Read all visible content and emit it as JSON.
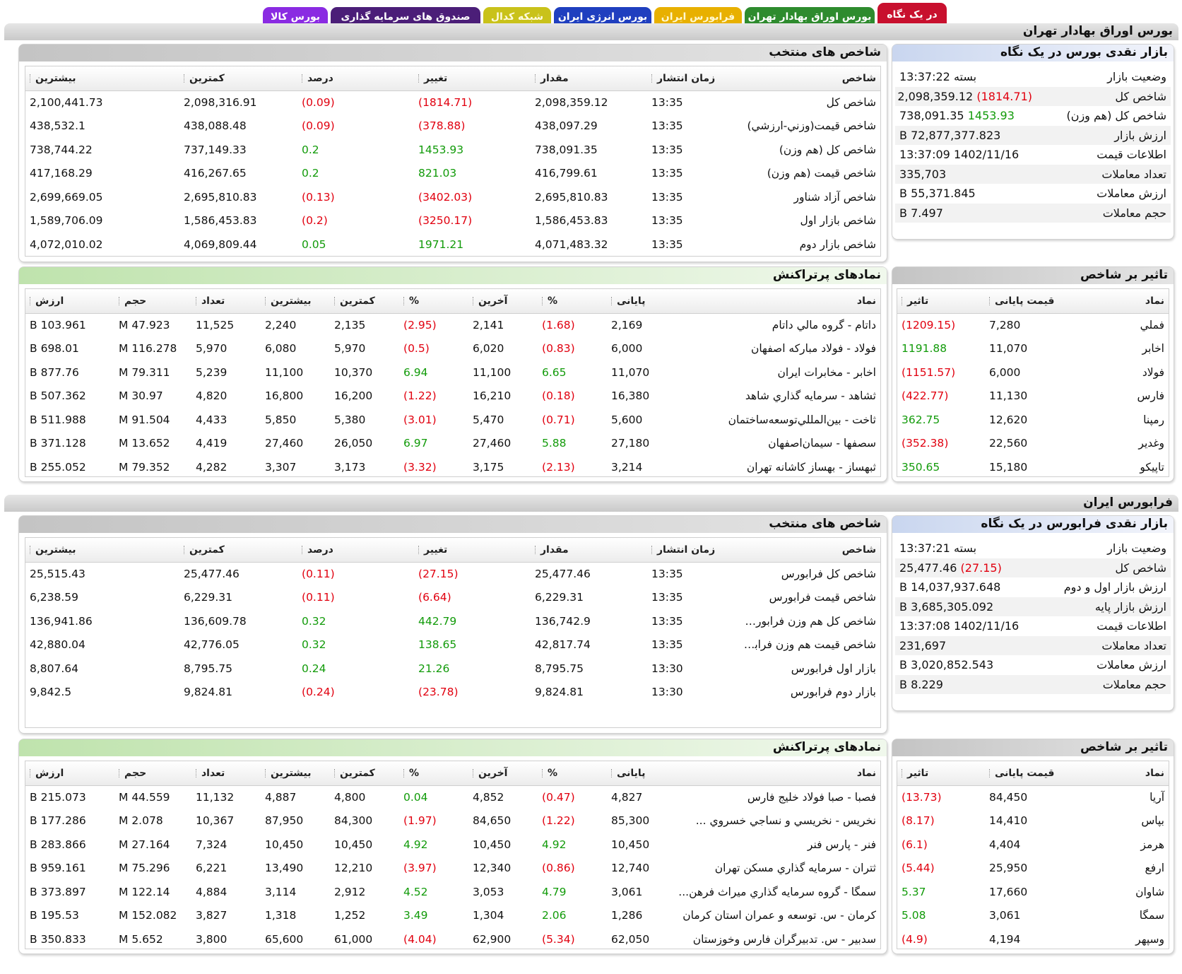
{
  "tabs": [
    {
      "label": "در یک نگاه",
      "bg": "#c8102e",
      "fg": "#ffffff",
      "active": true
    },
    {
      "label": "بورس اوراق بهادار تهران",
      "bg": "#2e8b2e",
      "fg": "#ffffff"
    },
    {
      "label": "فرابورس ایران",
      "bg": "#e8b000",
      "fg": "#fff8d0"
    },
    {
      "label": "بورس انرژی ایران",
      "bg": "#1f3fbf",
      "fg": "#ffffff"
    },
    {
      "label": "شبکه کدال",
      "bg": "#c9c21a",
      "fg": "#fffbe0"
    },
    {
      "label": "صندوق های سرمایه گذاری",
      "bg": "#4b1e78",
      "fg": "#ffffff"
    },
    {
      "label": "بورس کالا",
      "bg": "#8a2be2",
      "fg": "#ffffff"
    }
  ],
  "colors": {
    "negative": "#e1000f",
    "positive": "#129b0a"
  },
  "tehran": {
    "title": "بورس اوراق بهادار تهران",
    "overview": {
      "title": "بازار نقدی بورس در یک نگاه",
      "rows": [
        {
          "label": "وضعیت بازار",
          "value": "بسته 13:37:22"
        },
        {
          "label": "شاخص کل",
          "value": "2,098,359.12",
          "change": "(1814.71)",
          "sign": "neg"
        },
        {
          "label": "شاخص كل (هم وزن)",
          "value": "738,091.35",
          "change": "1453.93",
          "sign": "pos"
        },
        {
          "label": "ارزش بازار",
          "value": "72,877,377.823 B"
        },
        {
          "label": "اطلاعات قیمت",
          "value": "1402/11/16 13:37:09"
        },
        {
          "label": "تعداد معاملات",
          "value": "335,703"
        },
        {
          "label": "ارزش معاملات",
          "value": "55,371.845 B"
        },
        {
          "label": "حجم معاملات",
          "value": "7.497 B"
        }
      ]
    },
    "indices": {
      "title": "شاخص های منتخب",
      "headers": [
        "شاخص",
        "زمان انتشار",
        "مقدار",
        "تغییر",
        "درصد",
        "کمترین",
        "بیشترین"
      ],
      "rows": [
        {
          "name": "شاخص کل",
          "time": "13:35",
          "value": "2,098,359.12",
          "change": "(1814.71)",
          "percent": "(0.09)",
          "min": "2,098,316.91",
          "max": "2,100,441.73",
          "sign": "neg"
        },
        {
          "name": "شاخص قیمت(وزني-ارزشي)",
          "time": "13:35",
          "value": "438,097.29",
          "change": "(378.88)",
          "percent": "(0.09)",
          "min": "438,088.48",
          "max": "438,532.1",
          "sign": "neg"
        },
        {
          "name": "شاخص کل (هم وزن)",
          "time": "13:35",
          "value": "738,091.35",
          "change": "1453.93",
          "percent": "0.2",
          "min": "737,149.33",
          "max": "738,744.22",
          "sign": "pos"
        },
        {
          "name": "شاخص قیمت (هم وزن)",
          "time": "13:35",
          "value": "416,799.61",
          "change": "821.03",
          "percent": "0.2",
          "min": "416,267.65",
          "max": "417,168.29",
          "sign": "pos"
        },
        {
          "name": "شاخص آزاد شناور",
          "time": "13:35",
          "value": "2,695,810.83",
          "change": "(3402.03)",
          "percent": "(0.13)",
          "min": "2,695,810.83",
          "max": "2,699,669.05",
          "sign": "neg"
        },
        {
          "name": "شاخص بازار اول",
          "time": "13:35",
          "value": "1,586,453.83",
          "change": "(3250.17)",
          "percent": "(0.2)",
          "min": "1,586,453.83",
          "max": "1,589,706.09",
          "sign": "neg"
        },
        {
          "name": "شاخص بازار دوم",
          "time": "13:35",
          "value": "4,071,483.32",
          "change": "1971.21",
          "percent": "0.05",
          "min": "4,069,809.44",
          "max": "4,072,010.02",
          "sign": "pos"
        }
      ]
    },
    "impact": {
      "title": "تاثیر بر شاخص",
      "headers": [
        "نماد",
        "قیمت پایانی",
        "تاثیر"
      ],
      "rows": [
        {
          "symbol": "فملي",
          "price": "7,280",
          "impact": "(1209.15)",
          "sign": "neg"
        },
        {
          "symbol": "اخابر",
          "price": "11,070",
          "impact": "1191.88",
          "sign": "pos"
        },
        {
          "symbol": "فولاد",
          "price": "6,000",
          "impact": "(1151.57)",
          "sign": "neg"
        },
        {
          "symbol": "فارس",
          "price": "11,130",
          "impact": "(422.77)",
          "sign": "neg"
        },
        {
          "symbol": "رمپنا",
          "price": "12,620",
          "impact": "362.75",
          "sign": "pos"
        },
        {
          "symbol": "وغدير",
          "price": "22,560",
          "impact": "(352.38)",
          "sign": "neg"
        },
        {
          "symbol": "تاپيكو",
          "price": "15,180",
          "impact": "350.65",
          "sign": "pos"
        }
      ]
    },
    "active": {
      "title": "نمادهای پرتراکنش",
      "headers": [
        "نماد",
        "پایانی",
        "%",
        "آخرین",
        "%",
        "کمترین",
        "بیشترین",
        "تعداد",
        "حجم",
        "ارزش"
      ],
      "rows": [
        {
          "symbol": "داتام - گروه مالي داتام",
          "close": "2,169",
          "close_pct": "(1.68)",
          "close_sign": "neg",
          "last": "2,141",
          "last_pct": "(2.95)",
          "last_sign": "neg",
          "min": "2,135",
          "max": "2,240",
          "count": "11,525",
          "volume": "47.923 M",
          "value": "103.961 B"
        },
        {
          "symbol": "فولاد - فولاد مباركه اصفهان",
          "close": "6,000",
          "close_pct": "(0.83)",
          "close_sign": "neg",
          "last": "6,020",
          "last_pct": "(0.5)",
          "last_sign": "neg",
          "min": "5,970",
          "max": "6,080",
          "count": "5,970",
          "volume": "116.278 M",
          "value": "698.01 B"
        },
        {
          "symbol": "اخابر - مخابرات ايران",
          "close": "11,070",
          "close_pct": "6.65",
          "close_sign": "pos",
          "last": "11,100",
          "last_pct": "6.94",
          "last_sign": "pos",
          "min": "10,370",
          "max": "11,100",
          "count": "5,239",
          "volume": "79.311 M",
          "value": "877.76 B"
        },
        {
          "symbol": "ثشاهد - سرمايه گذاري شاهد",
          "close": "16,380",
          "close_pct": "(0.18)",
          "close_sign": "neg",
          "last": "16,210",
          "last_pct": "(1.22)",
          "last_sign": "neg",
          "min": "16,200",
          "max": "16,800",
          "count": "4,820",
          "volume": "30.97 M",
          "value": "507.362 B"
        },
        {
          "symbol": "ثاخت - بين‌المللي‌توسعه‌ساختمان",
          "close": "5,600",
          "close_pct": "(0.71)",
          "close_sign": "neg",
          "last": "5,470",
          "last_pct": "(3.01)",
          "last_sign": "neg",
          "min": "5,380",
          "max": "5,850",
          "count": "4,433",
          "volume": "91.504 M",
          "value": "511.988 B"
        },
        {
          "symbol": "سصفها - سيمان‌اصفهان",
          "close": "27,180",
          "close_pct": "5.88",
          "close_sign": "pos",
          "last": "27,460",
          "last_pct": "6.97",
          "last_sign": "pos",
          "min": "26,050",
          "max": "27,460",
          "count": "4,419",
          "volume": "13.652 M",
          "value": "371.128 B"
        },
        {
          "symbol": "ثبهساز - بهساز كاشانه تهران",
          "close": "3,214",
          "close_pct": "(2.13)",
          "close_sign": "neg",
          "last": "3,175",
          "last_pct": "(3.32)",
          "last_sign": "neg",
          "min": "3,173",
          "max": "3,307",
          "count": "4,282",
          "volume": "79.352 M",
          "value": "255.052 B"
        }
      ]
    }
  },
  "farabourse": {
    "title": "فرابورس ایران",
    "overview": {
      "title": "بازار نقدی فرابورس در یک نگاه",
      "rows": [
        {
          "label": "وضعیت بازار",
          "value": "بسته 13:37:21"
        },
        {
          "label": "شاخص کل",
          "value": "25,477.46",
          "change": "(27.15)",
          "sign": "neg"
        },
        {
          "label": "ارزش بازار اول و دوم",
          "value": "14,037,937.648 B"
        },
        {
          "label": "ارزش بازار پایه",
          "value": "3,685,305.092 B"
        },
        {
          "label": "اطلاعات قیمت",
          "value": "1402/11/16 13:37:08"
        },
        {
          "label": "تعداد معاملات",
          "value": "231,697"
        },
        {
          "label": "ارزش معاملات",
          "value": "3,020,852.543 B"
        },
        {
          "label": "حجم معاملات",
          "value": "8.229 B"
        }
      ]
    },
    "indices": {
      "title": "شاخص های منتخب",
      "headers": [
        "شاخص",
        "زمان انتشار",
        "مقدار",
        "تغییر",
        "درصد",
        "کمترین",
        "بیشترین"
      ],
      "rows": [
        {
          "name": "شاخص کل فرابورس",
          "time": "13:35",
          "value": "25,477.46",
          "change": "(27.15)",
          "percent": "(0.11)",
          "min": "25,477.46",
          "max": "25,515.43",
          "sign": "neg"
        },
        {
          "name": "شاخص قیمت فرابورس",
          "time": "13:35",
          "value": "6,229.31",
          "change": "(6.64)",
          "percent": "(0.11)",
          "min": "6,229.31",
          "max": "6,238.59",
          "sign": "neg"
        },
        {
          "name": "شاخص کل هم وزن فرابورس",
          "time": "13:35",
          "value": "136,742.9",
          "change": "442.79",
          "percent": "0.32",
          "min": "136,609.78",
          "max": "136,941.86",
          "sign": "pos"
        },
        {
          "name": "شاخص قیمت هم وزن فرابو...",
          "time": "13:35",
          "value": "42,817.74",
          "change": "138.65",
          "percent": "0.32",
          "min": "42,776.05",
          "max": "42,880.04",
          "sign": "pos"
        },
        {
          "name": "بازار اول فرابورس",
          "time": "13:30",
          "value": "8,795.75",
          "change": "21.26",
          "percent": "0.24",
          "min": "8,795.75",
          "max": "8,807.64",
          "sign": "pos"
        },
        {
          "name": "بازار دوم فرابورس",
          "time": "13:30",
          "value": "9,824.81",
          "change": "(23.78)",
          "percent": "(0.24)",
          "min": "9,824.81",
          "max": "9,842.5",
          "sign": "neg"
        }
      ]
    },
    "impact": {
      "title": "تاثیر بر شاخص",
      "headers": [
        "نماد",
        "قیمت پایانی",
        "تاثیر"
      ],
      "rows": [
        {
          "symbol": "آريا",
          "price": "84,450",
          "impact": "(13.73)",
          "sign": "neg"
        },
        {
          "symbol": "بپاس",
          "price": "14,410",
          "impact": "(8.17)",
          "sign": "neg"
        },
        {
          "symbol": "هرمز",
          "price": "4,404",
          "impact": "(6.1)",
          "sign": "neg"
        },
        {
          "symbol": "ارفع",
          "price": "25,950",
          "impact": "(5.44)",
          "sign": "neg"
        },
        {
          "symbol": "شاوان",
          "price": "17,660",
          "impact": "5.37",
          "sign": "pos"
        },
        {
          "symbol": "سمگا",
          "price": "3,061",
          "impact": "5.08",
          "sign": "pos"
        },
        {
          "symbol": "وسپهر",
          "price": "4,194",
          "impact": "(4.9)",
          "sign": "neg"
        }
      ]
    },
    "active": {
      "title": "نمادهای پرتراکنش",
      "headers": [
        "نماد",
        "پایانی",
        "%",
        "آخرین",
        "%",
        "کمترین",
        "بیشترین",
        "تعداد",
        "حجم",
        "ارزش"
      ],
      "rows": [
        {
          "symbol": "فصبا - صبا فولاد خليج فارس",
          "close": "4,827",
          "close_pct": "(0.47)",
          "close_sign": "neg",
          "last": "4,852",
          "last_pct": "0.04",
          "last_sign": "pos",
          "min": "4,800",
          "max": "4,887",
          "count": "11,132",
          "volume": "44.559 M",
          "value": "215.073 B"
        },
        {
          "symbol": "نخريس - نخريسي و نساجي خسروي ...",
          "close": "85,300",
          "close_pct": "(1.22)",
          "close_sign": "neg",
          "last": "84,650",
          "last_pct": "(1.97)",
          "last_sign": "neg",
          "min": "84,300",
          "max": "87,950",
          "count": "10,367",
          "volume": "2.078 M",
          "value": "177.286 B"
        },
        {
          "symbol": "فنر - پارس فنر",
          "close": "10,450",
          "close_pct": "4.92",
          "close_sign": "pos",
          "last": "10,450",
          "last_pct": "4.92",
          "last_sign": "pos",
          "min": "10,450",
          "max": "10,450",
          "count": "7,324",
          "volume": "27.164 M",
          "value": "283.866 B"
        },
        {
          "symbol": "ثتران - سرمايه گذاري مسكن تهران",
          "close": "12,740",
          "close_pct": "(0.86)",
          "close_sign": "neg",
          "last": "12,340",
          "last_pct": "(3.97)",
          "last_sign": "neg",
          "min": "12,210",
          "max": "13,490",
          "count": "6,221",
          "volume": "75.296 M",
          "value": "959.161 B"
        },
        {
          "symbol": "سمگا - گروه سرمايه گذاري ميراث فرهن...",
          "close": "3,061",
          "close_pct": "4.79",
          "close_sign": "pos",
          "last": "3,053",
          "last_pct": "4.52",
          "last_sign": "pos",
          "min": "2,912",
          "max": "3,114",
          "count": "4,884",
          "volume": "122.14 M",
          "value": "373.897 B"
        },
        {
          "symbol": "كرمان - س. توسعه و عمران استان كرمان",
          "close": "1,286",
          "close_pct": "2.06",
          "close_sign": "pos",
          "last": "1,304",
          "last_pct": "3.49",
          "last_sign": "pos",
          "min": "1,252",
          "max": "1,318",
          "count": "3,827",
          "volume": "152.082 M",
          "value": "195.53 B"
        },
        {
          "symbol": "سدبير - س. تدبيرگران فارس وخوزستان",
          "close": "62,050",
          "close_pct": "(5.34)",
          "close_sign": "neg",
          "last": "62,900",
          "last_pct": "(4.04)",
          "last_sign": "neg",
          "min": "61,000",
          "max": "65,600",
          "count": "3,800",
          "volume": "5.652 M",
          "value": "350.833 B"
        }
      ]
    }
  }
}
